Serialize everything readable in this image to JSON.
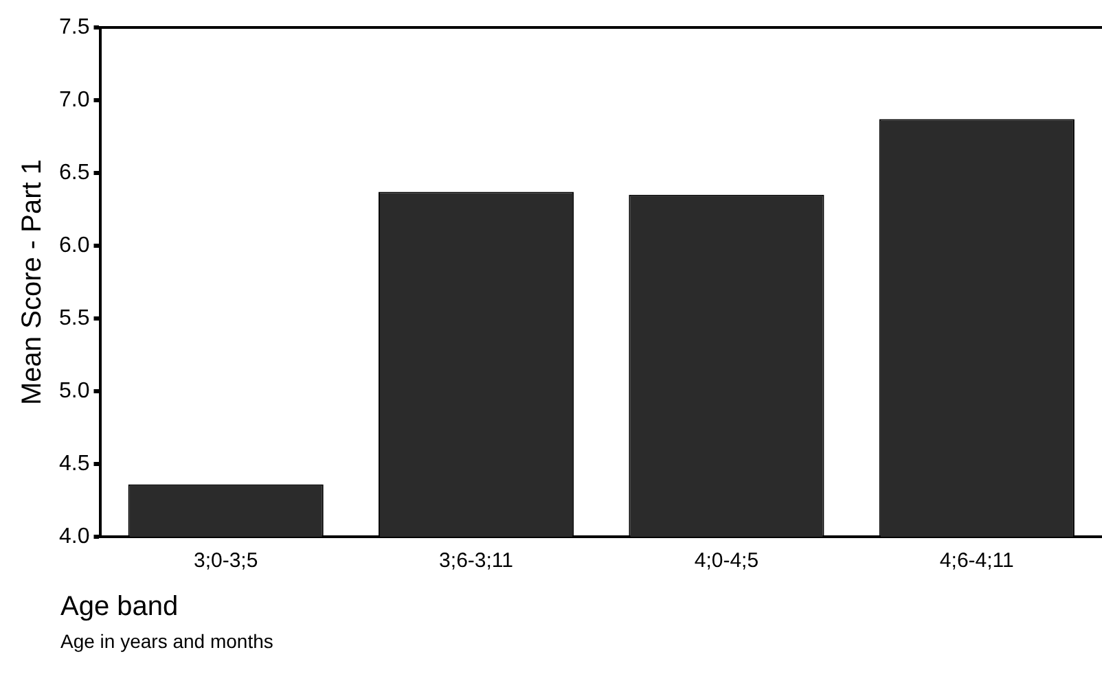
{
  "chart_data": {
    "type": "bar",
    "xlabel": "Age band",
    "ylabel": "Mean Score - Part 1",
    "categories": [
      "3;0-3;5",
      "3;6-3;11",
      "4;0-4;5",
      "4;6-4;11"
    ],
    "values": [
      4.36,
      6.37,
      6.35,
      6.87
    ],
    "color": "#2b2b2b",
    "ylim": [
      4.0,
      7.5
    ],
    "yticks": [
      {
        "value": 4.0,
        "label": "4.0"
      },
      {
        "value": 4.5,
        "label": "4.5"
      },
      {
        "value": 5.0,
        "label": "5.0"
      },
      {
        "value": 5.5,
        "label": "5.5"
      },
      {
        "value": 6.0,
        "label": "6.0"
      },
      {
        "value": 6.5,
        "label": "6.5"
      },
      {
        "value": 7.0,
        "label": "7.0"
      },
      {
        "value": 7.5,
        "label": "7.5"
      }
    ],
    "grid": false,
    "legend": false,
    "annotations": [
      "Age in years and months"
    ]
  }
}
